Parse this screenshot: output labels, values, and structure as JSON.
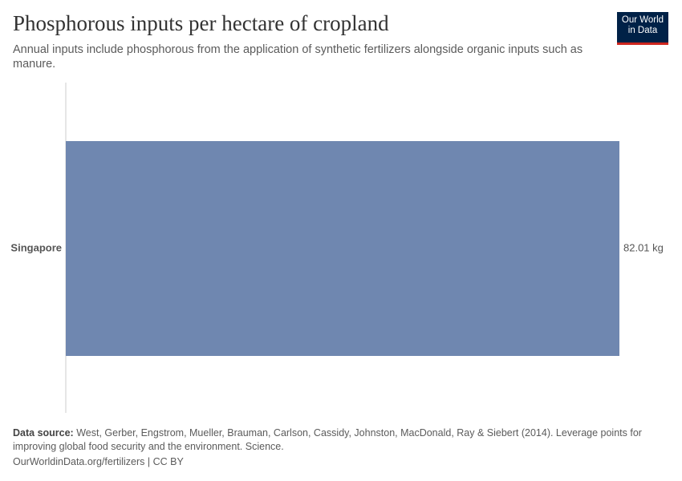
{
  "chart_data": {
    "type": "hbar",
    "title": "Phosphorous inputs per hectare of cropland",
    "subtitle": "Annual inputs include phosphorous from the application of synthetic fertilizers alongside organic inputs such as manure.",
    "categories": [
      "Singapore"
    ],
    "values": [
      82.01
    ],
    "value_labels": [
      "82.01 kg"
    ],
    "color": "#6f87b0",
    "logo": [
      "Our World",
      "in Data"
    ],
    "source": {
      "label": "Data source:",
      "text": "West, Gerber, Engstrom, Mueller, Brauman, Carlson, Cassidy, Johnston, MacDonald, Ray & Siebert (2014). Leverage points for improving global food security and the environment. Science."
    },
    "footer": "OurWorldinData.org/fertilizers | CC BY"
  }
}
